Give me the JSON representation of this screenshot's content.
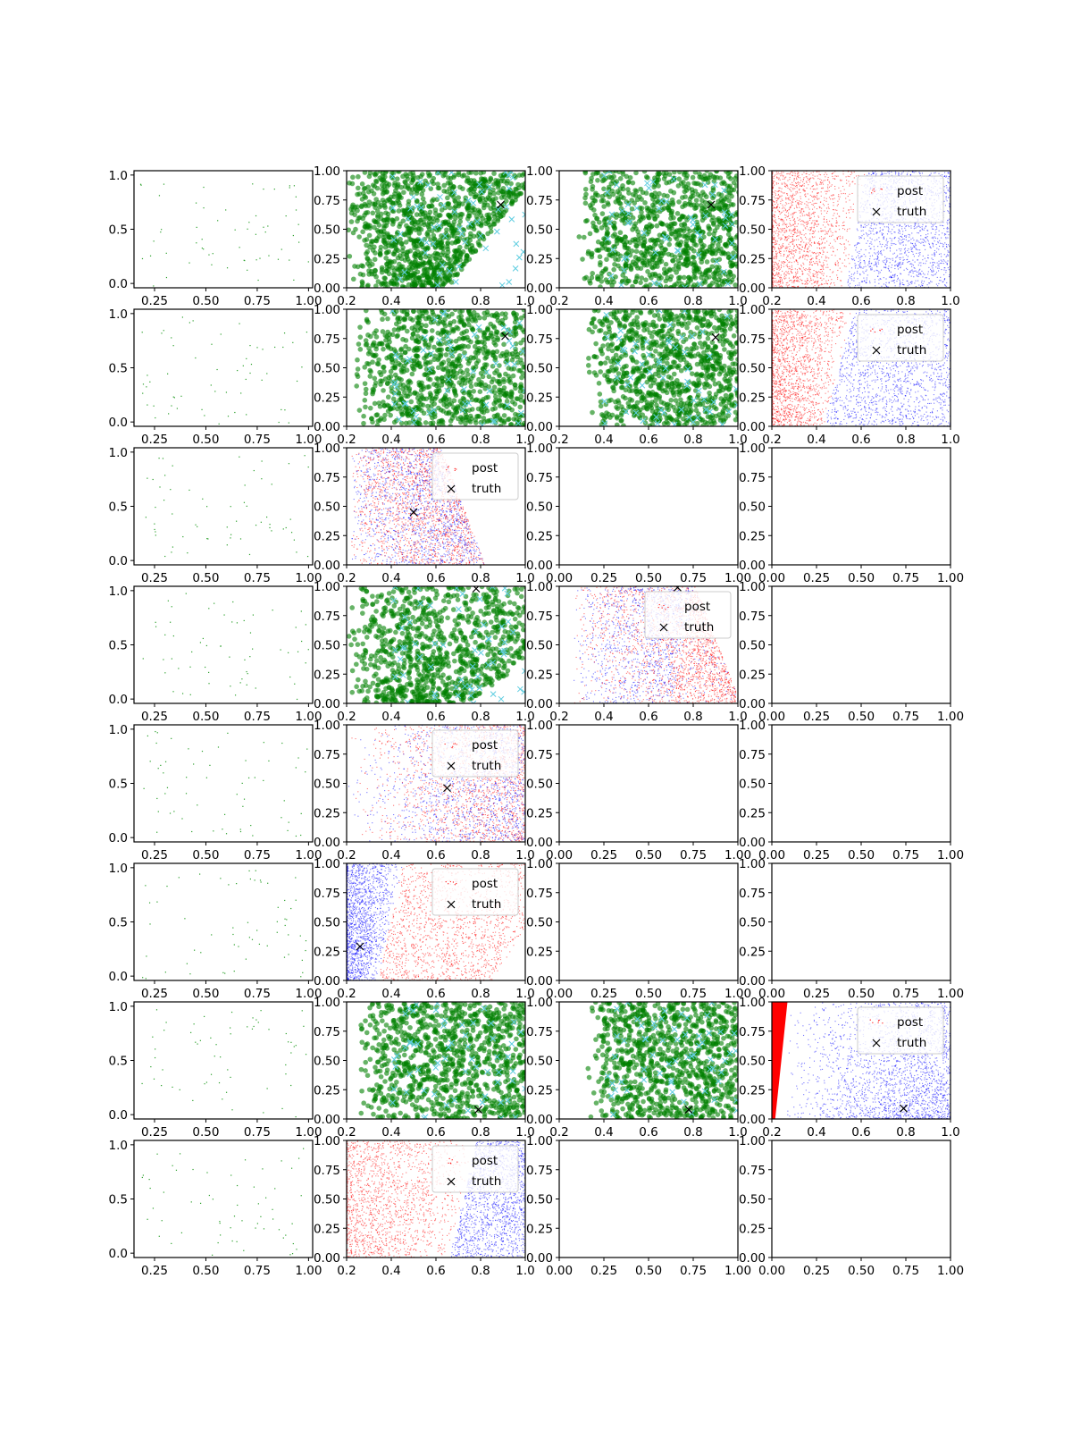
{
  "figure": {
    "rows": 8,
    "cols": 4
  },
  "colors": {
    "prior": "#2ca02c",
    "green": "#008000",
    "cyan": "#5ecde0",
    "red": "#ff0000",
    "blue": "#0000ff",
    "truth": "#000000"
  },
  "legend": {
    "post_label": "post",
    "truth_label": "truth"
  },
  "chart_data": {
    "type": "scatter",
    "description_axes": "8x4 grid of scatter subplots",
    "axis_types": {
      "prior": {
        "xlim": [
          0.15,
          1.02
        ],
        "ylim": [
          -0.04,
          1.04
        ],
        "xticks": [
          0.25,
          0.5,
          0.75,
          1.0
        ],
        "xtick_labels": [
          "0.25",
          "0.50",
          "0.75",
          "1.00"
        ],
        "yticks": [
          0.0,
          0.5,
          1.0
        ],
        "ytick_labels": [
          "0.0",
          "0.5",
          "1.0"
        ]
      },
      "post": {
        "xlim": [
          0.2,
          1.0
        ],
        "ylim": [
          0.0,
          1.0
        ],
        "xticks": [
          0.2,
          0.4,
          0.6,
          0.8,
          1.0
        ],
        "xtick_labels": [
          "0.2",
          "0.4",
          "0.6",
          "0.8",
          "1.0"
        ],
        "yticks": [
          0.0,
          0.25,
          0.5,
          0.75,
          1.0
        ],
        "ytick_labels": [
          "0.00",
          "0.25",
          "0.50",
          "0.75",
          "1.00"
        ]
      },
      "empty": {
        "xlim": [
          0.0,
          1.0
        ],
        "ylim": [
          0.0,
          1.0
        ],
        "xticks": [
          0.0,
          0.25,
          0.5,
          0.75,
          1.0
        ],
        "xtick_labels": [
          "0.00",
          "0.25",
          "0.50",
          "0.75",
          "1.00"
        ],
        "yticks": [
          0.0,
          0.25,
          0.5,
          0.75,
          1.0
        ],
        "ytick_labels": [
          "0.00",
          "0.25",
          "0.50",
          "0.75",
          "1.00"
        ]
      }
    },
    "panels": [
      [
        {
          "kind": "prior",
          "n": 60
        },
        {
          "kind": "green",
          "truth": [
            0.89,
            0.71
          ],
          "band": [
            0.2,
            0.58,
            0.15,
            0.42
          ]
        },
        {
          "kind": "green",
          "truth": [
            0.88,
            0.71
          ],
          "band": [
            0.28,
            0.62,
            0.0,
            0.0
          ]
        },
        {
          "kind": "split",
          "truth": null,
          "legend": true,
          "split": [
            0.53,
            0.62,
            0.68,
            0.9
          ],
          "left": "red",
          "right": "blue"
        }
      ],
      [
        {
          "kind": "prior",
          "n": 60
        },
        {
          "kind": "green",
          "truth": [
            0.91,
            0.77
          ],
          "band": [
            0.22,
            0.62,
            0.0,
            0.0
          ]
        },
        {
          "kind": "green",
          "truth": [
            0.9,
            0.76
          ],
          "band": [
            0.32,
            0.68,
            0.0,
            0.0
          ]
        },
        {
          "kind": "split",
          "truth": null,
          "legend": true,
          "split": [
            0.43,
            0.57,
            0.2,
            0.45
          ],
          "left": "red",
          "right": "blue"
        }
      ],
      [
        {
          "kind": "prior",
          "n": 60
        },
        {
          "kind": "mixed",
          "truth": [
            0.5,
            0.45
          ],
          "legend": true,
          "mix": [
            0.25,
            0.7,
            0.22,
            0.52
          ]
        },
        {
          "kind": "empty"
        },
        {
          "kind": "empty"
        }
      ],
      [
        {
          "kind": "prior",
          "n": 60
        },
        {
          "kind": "green",
          "truth": [
            0.78,
            0.98
          ],
          "band": [
            0.2,
            0.62,
            0.24,
            0.72
          ]
        },
        {
          "kind": "mixed2",
          "truth": [
            0.73,
            0.99
          ],
          "legend": true,
          "mix": [
            0.28,
            0.68,
            0.2,
            0.8
          ]
        },
        {
          "kind": "empty"
        }
      ],
      [
        {
          "kind": "prior",
          "n": 60
        },
        {
          "kind": "mixed3",
          "truth": [
            0.65,
            0.46
          ],
          "legend": true,
          "mix": [
            0.2,
            0.5,
            0.45,
            0.95
          ]
        },
        {
          "kind": "empty"
        },
        {
          "kind": "empty"
        }
      ],
      [
        {
          "kind": "prior",
          "n": 60
        },
        {
          "kind": "split",
          "truth": [
            0.26,
            0.29
          ],
          "legend": true,
          "split": [
            0.34,
            0.45,
            0.3,
            0.32
          ],
          "left": "blue",
          "right": "red"
        },
        {
          "kind": "empty"
        },
        {
          "kind": "empty"
        }
      ],
      [
        {
          "kind": "prior",
          "n": 60
        },
        {
          "kind": "green",
          "truth": [
            0.79,
            0.08
          ],
          "band": [
            0.25,
            0.6,
            0.0,
            0.0
          ]
        },
        {
          "kind": "green",
          "truth": [
            0.78,
            0.08
          ],
          "band": [
            0.32,
            0.62,
            0.0,
            0.0
          ]
        },
        {
          "kind": "wedge",
          "truth": [
            0.79,
            0.09
          ],
          "legend": true
        }
      ],
      [
        {
          "kind": "prior",
          "n": 60
        },
        {
          "kind": "split",
          "truth": null,
          "legend": true,
          "split": [
            0.66,
            0.78,
            0.48,
            0.85
          ],
          "left": "red",
          "right": "blue"
        },
        {
          "kind": "empty"
        },
        {
          "kind": "empty"
        }
      ]
    ]
  }
}
